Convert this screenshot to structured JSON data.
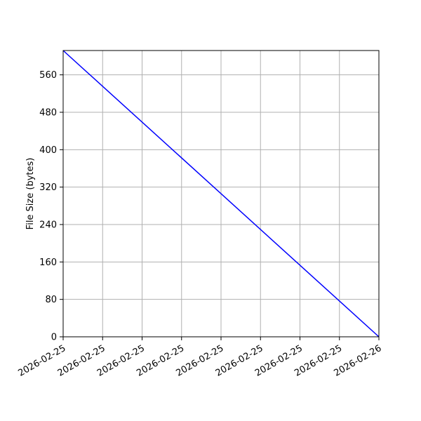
{
  "chart_data": {
    "type": "line",
    "xlabel": "",
    "ylabel": "File Size (bytes)",
    "x_tick_labels": [
      "2026-02-25",
      "2026-02-25",
      "2026-02-25",
      "2026-02-25",
      "2026-02-25",
      "2026-02-25",
      "2026-02-25",
      "2026-02-25",
      "2026-02-26"
    ],
    "y_ticks": [
      0,
      80,
      160,
      240,
      320,
      400,
      480,
      560
    ],
    "ylim": [
      0,
      612
    ],
    "grid": true,
    "series": [
      {
        "color": "#0000ff",
        "points": [
          {
            "x": "2026-02-25",
            "y": 612
          },
          {
            "x": "2026-02-26",
            "y": 0
          }
        ]
      }
    ]
  }
}
